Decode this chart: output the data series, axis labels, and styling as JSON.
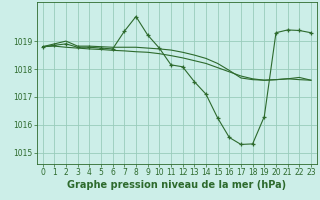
{
  "background_color": "#cceee8",
  "grid_color": "#99ccbb",
  "line_color": "#2d6a2d",
  "marker_color": "#2d6a2d",
  "xlabel": "Graphe pression niveau de la mer (hPa)",
  "xlim": [
    -0.5,
    23.5
  ],
  "ylim": [
    1014.6,
    1020.4
  ],
  "yticks": [
    1015,
    1016,
    1017,
    1018,
    1019
  ],
  "xticks": [
    0,
    1,
    2,
    3,
    4,
    5,
    6,
    7,
    8,
    9,
    10,
    11,
    12,
    13,
    14,
    15,
    16,
    17,
    18,
    19,
    20,
    21,
    22,
    23
  ],
  "series": [
    {
      "x": [
        0,
        1,
        2,
        3,
        4,
        5,
        6,
        7,
        8,
        9,
        10,
        11,
        12,
        13,
        14,
        15,
        16,
        17,
        18,
        19,
        20,
        21,
        22,
        23
      ],
      "y": [
        1018.8,
        1018.82,
        1018.78,
        1018.75,
        1018.72,
        1018.7,
        1018.67,
        1018.65,
        1018.62,
        1018.6,
        1018.55,
        1018.48,
        1018.4,
        1018.3,
        1018.2,
        1018.05,
        1017.9,
        1017.75,
        1017.65,
        1017.6,
        1017.62,
        1017.65,
        1017.7,
        1017.6
      ],
      "style": "solid",
      "has_markers": false
    },
    {
      "x": [
        0,
        1,
        2,
        3,
        4,
        5,
        6,
        7,
        8,
        9,
        10,
        11,
        12,
        13,
        14,
        15,
        16,
        17,
        18,
        19,
        20,
        21,
        22,
        23
      ],
      "y": [
        1018.8,
        1018.85,
        1018.9,
        1018.78,
        1018.78,
        1018.75,
        1018.72,
        1019.35,
        1019.88,
        1019.22,
        1018.75,
        1018.15,
        1018.08,
        1017.55,
        1017.1,
        1016.25,
        1015.55,
        1015.3,
        1015.32,
        1016.3,
        1019.3,
        1019.4,
        1019.38,
        1019.3
      ],
      "style": "solid",
      "has_markers": true
    },
    {
      "x": [
        0,
        1,
        2,
        3,
        4,
        5,
        6,
        7,
        8,
        9,
        10,
        11,
        12,
        13,
        14,
        15,
        16,
        17,
        18,
        19,
        20,
        21,
        22,
        23
      ],
      "y": [
        1018.8,
        1018.9,
        1019.0,
        1018.82,
        1018.82,
        1018.8,
        1018.78,
        1018.78,
        1018.78,
        1018.75,
        1018.72,
        1018.68,
        1018.6,
        1018.5,
        1018.38,
        1018.2,
        1017.95,
        1017.68,
        1017.62,
        1017.6,
        1017.62,
        1017.65,
        1017.62,
        1017.6
      ],
      "style": "solid",
      "has_markers": false
    }
  ],
  "title_fontsize": 7,
  "tick_fontsize": 5.5,
  "title_bold": true,
  "title_color": "#2d6a2d",
  "tick_color": "#2d6a2d",
  "spine_color": "#2d6a2d"
}
